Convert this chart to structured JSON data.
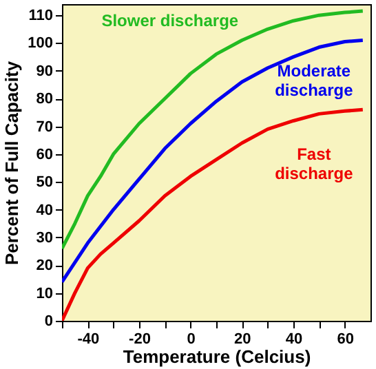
{
  "chart_data": {
    "type": "line",
    "xlabel": "Temperature (Celcius)",
    "ylabel": "Percent of Full Capacity",
    "xlim": [
      -50,
      70
    ],
    "ylim": [
      0,
      114
    ],
    "xticks": [
      {
        "value": -50,
        "label": null
      },
      -40,
      {
        "value": -30,
        "label": null
      },
      -20,
      {
        "value": -10,
        "label": null
      },
      0,
      {
        "value": 10,
        "label": null
      },
      20,
      {
        "value": 30,
        "label": null
      },
      40,
      {
        "value": 50,
        "label": null
      },
      60
    ],
    "yticks": [
      0,
      10,
      20,
      30,
      40,
      50,
      60,
      70,
      80,
      90,
      100,
      110
    ],
    "x": [
      -50,
      -45,
      -40,
      -35,
      -30,
      -20,
      -10,
      0,
      10,
      20,
      30,
      40,
      50,
      60,
      67
    ],
    "series": [
      {
        "name": "Slower discharge",
        "color": "#22bb22",
        "values": [
          26,
          35,
          45,
          52,
          60,
          71,
          80,
          89,
          96,
          101,
          105,
          108,
          110,
          111,
          111.5
        ]
      },
      {
        "name": "Moderate discharge",
        "color": "#0000ee",
        "values": [
          14,
          21,
          28,
          34,
          40,
          51,
          62,
          71,
          79,
          86,
          91,
          95,
          98.5,
          100.5,
          101
        ]
      },
      {
        "name": "Fast discharge",
        "color": "#ee0000",
        "values": [
          0,
          10,
          19,
          24,
          28,
          36,
          45,
          52,
          58,
          64,
          69,
          72,
          74.5,
          75.5,
          76
        ]
      }
    ],
    "grid": false,
    "marker": "none",
    "line_style": "solid"
  }
}
